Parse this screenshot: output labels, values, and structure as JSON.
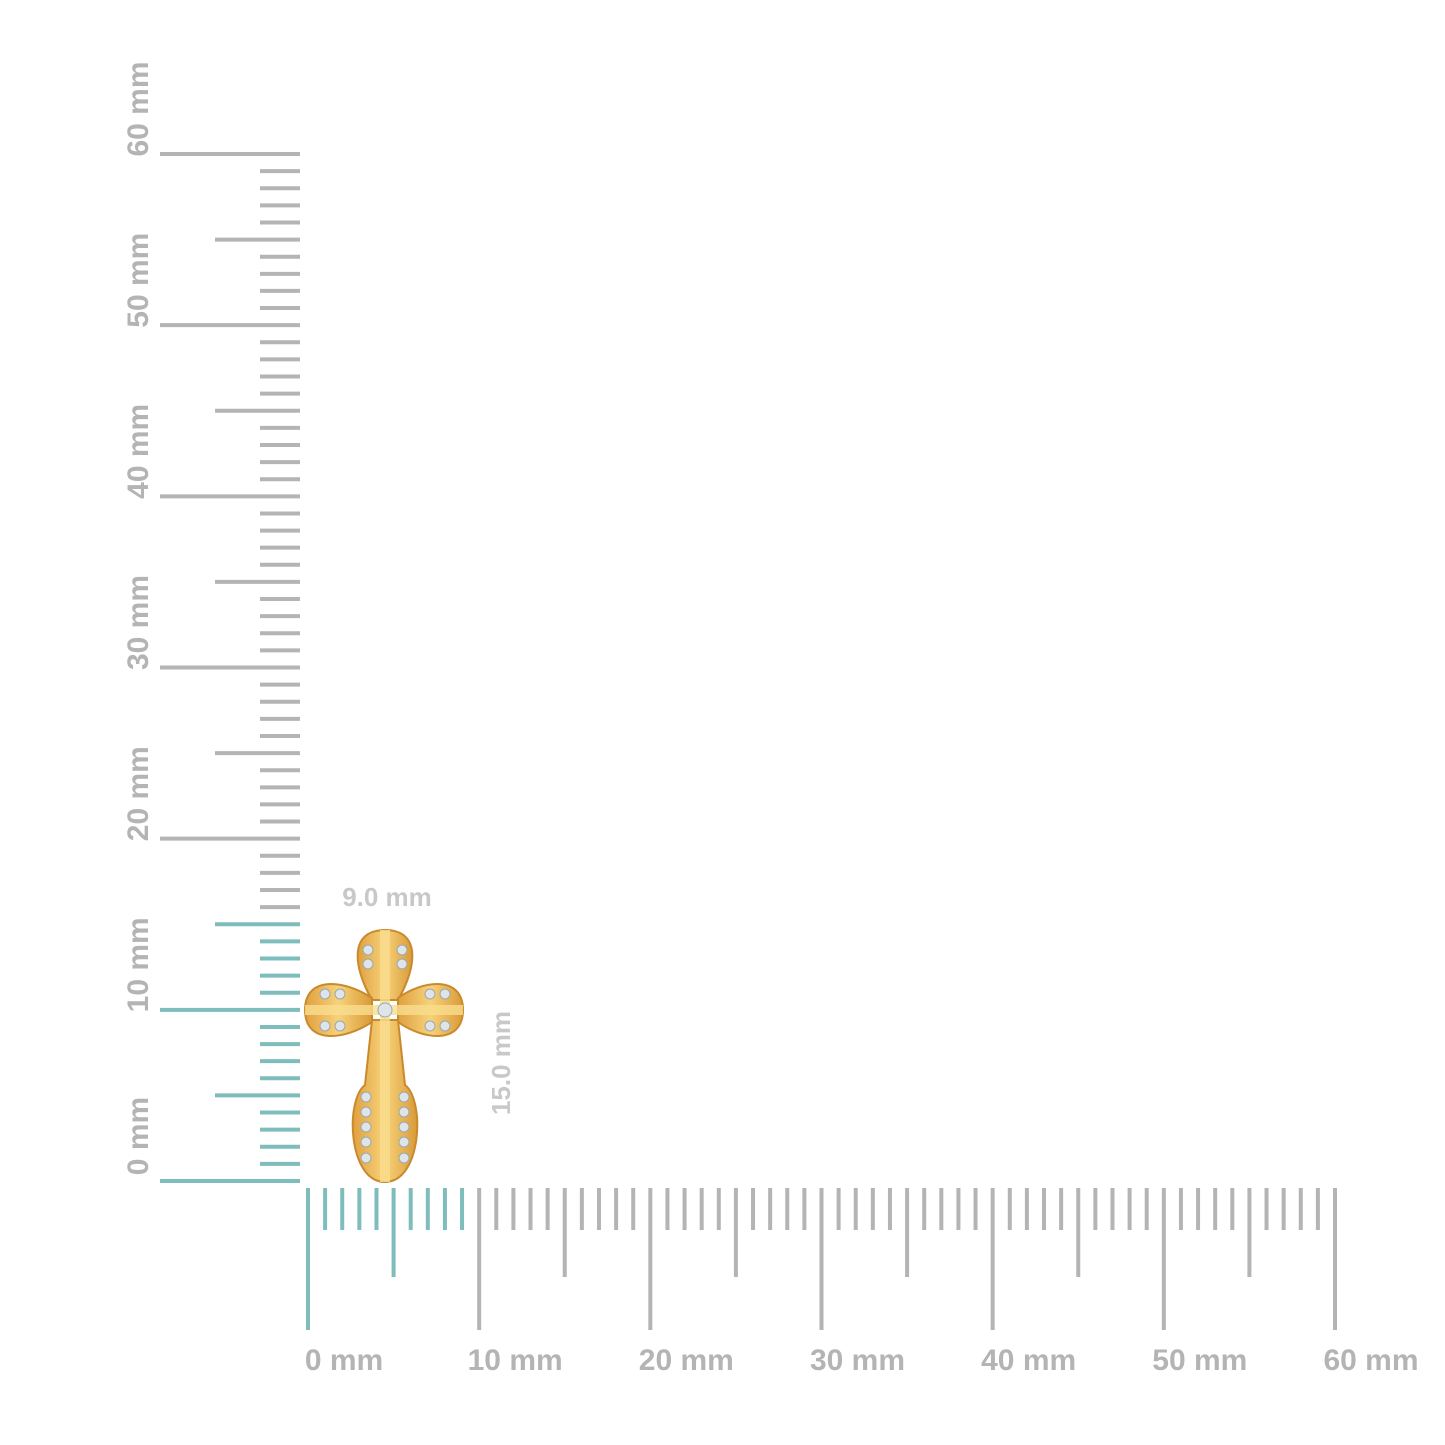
{
  "y_ruler": {
    "labels": [
      "0 mm",
      "10 mm",
      "20 mm",
      "30 mm",
      "40 mm",
      "50 mm",
      "60 mm"
    ]
  },
  "x_ruler": {
    "labels": [
      "0 mm",
      "10 mm",
      "20 mm",
      "30 mm",
      "40 mm",
      "50 mm",
      "60 mm"
    ]
  },
  "dimensions": {
    "width": "9.0 mm",
    "height": "15.0 mm"
  }
}
